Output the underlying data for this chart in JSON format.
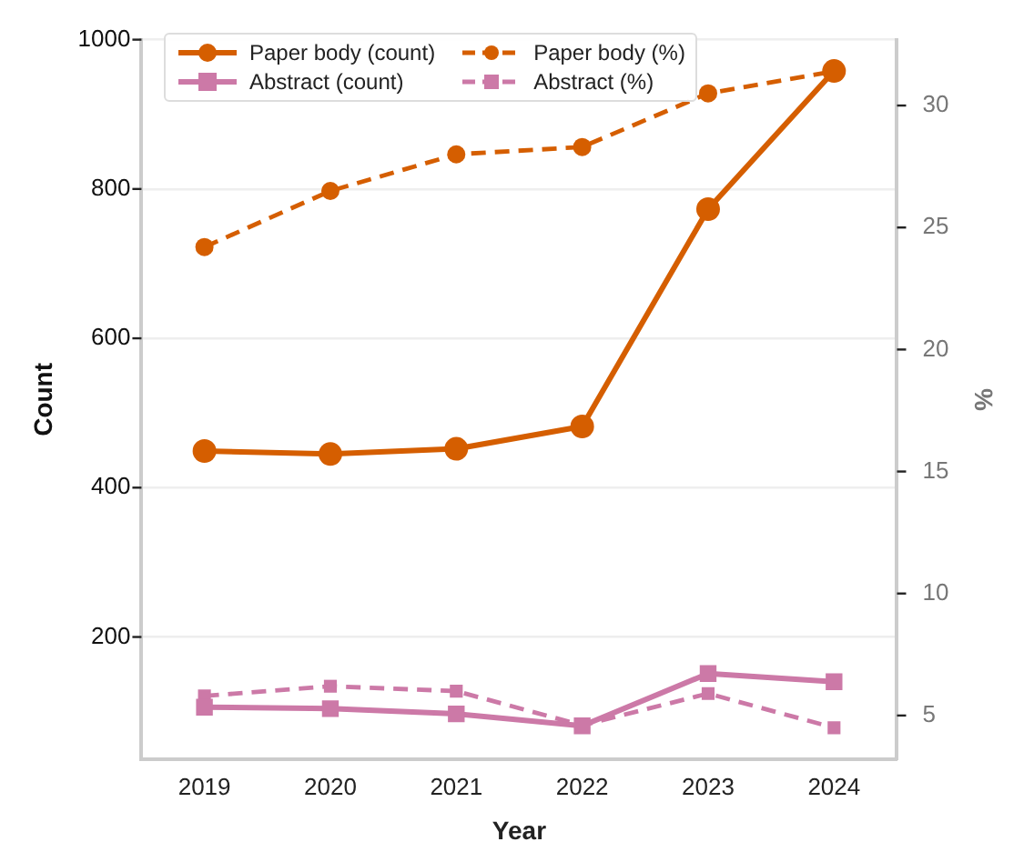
{
  "chart_data": {
    "type": "line",
    "xlabel": "Year",
    "ylabel": "Count",
    "y2label": "%",
    "categories": [
      "2019",
      "2020",
      "2021",
      "2022",
      "2023",
      "2024"
    ],
    "series": [
      {
        "name": "Paper body (count)",
        "color": "#d55e00",
        "marker": "circle",
        "line_style": "solid",
        "values": [
          449,
          445,
          452,
          482,
          773,
          958
        ]
      },
      {
        "name": "Abstract (count)",
        "color": "#cc79a7",
        "marker": "square",
        "line_style": "solid",
        "values": [
          106,
          104,
          97,
          81,
          151,
          140
        ]
      },
      {
        "name": "Paper body (%)",
        "color": "#d55e00",
        "marker": "circle",
        "line_style": "dashed",
        "axis": "y2",
        "values": [
          24.2,
          26.5,
          28.0,
          28.3,
          30.5,
          31.4
        ]
      },
      {
        "name": "Abstract (%)",
        "color": "#cc79a7",
        "marker": "square",
        "line_style": "dashed",
        "axis": "y2",
        "values": [
          5.8,
          6.2,
          6.0,
          4.6,
          5.9,
          4.5
        ]
      }
    ],
    "ylim": [
      36,
      1000
    ],
    "yticks": [
      200,
      400,
      600,
      800,
      1000
    ],
    "y2lim": [
      3.2,
      32.7
    ],
    "y2ticks": [
      5,
      10,
      15,
      20,
      25,
      30
    ],
    "grid": "y",
    "legend": "top left"
  }
}
